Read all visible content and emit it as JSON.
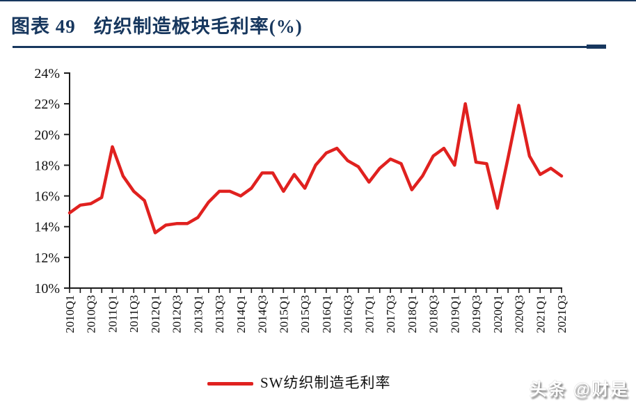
{
  "page": {
    "title_prefix": "图表 49",
    "title_text": "纺织制造板块毛利率(%)",
    "watermark": "头条 @财是"
  },
  "colors": {
    "navy": "#17375E",
    "line_red": "#E0211F",
    "axis": "#1a1a1a"
  },
  "legend": {
    "label": "SW纺织制造毛利率"
  },
  "chart_data": {
    "type": "line",
    "title": "纺织制造板块毛利率(%)",
    "x": [
      "2010Q1",
      "2010Q2",
      "2010Q3",
      "2010Q4",
      "2011Q1",
      "2011Q2",
      "2011Q3",
      "2011Q4",
      "2012Q1",
      "2012Q2",
      "2012Q3",
      "2012Q4",
      "2013Q1",
      "2013Q2",
      "2013Q3",
      "2013Q4",
      "2014Q1",
      "2014Q2",
      "2014Q3",
      "2014Q4",
      "2015Q1",
      "2015Q2",
      "2015Q3",
      "2015Q4",
      "2016Q1",
      "2016Q2",
      "2016Q3",
      "2016Q4",
      "2017Q1",
      "2017Q2",
      "2017Q3",
      "2017Q4",
      "2018Q1",
      "2018Q2",
      "2018Q3",
      "2018Q4",
      "2019Q1",
      "2019Q2",
      "2019Q3",
      "2019Q4",
      "2020Q1",
      "2020Q2",
      "2020Q3",
      "2020Q4",
      "2021Q1",
      "2021Q2",
      "2021Q3"
    ],
    "series": [
      {
        "name": "SW纺织制造毛利率",
        "values": [
          14.9,
          15.4,
          15.5,
          15.9,
          19.2,
          17.3,
          16.3,
          15.7,
          13.6,
          14.1,
          14.2,
          14.2,
          14.6,
          15.6,
          16.3,
          16.3,
          16.0,
          16.5,
          17.5,
          17.5,
          16.3,
          17.4,
          16.5,
          18.0,
          18.8,
          19.1,
          18.3,
          17.9,
          16.9,
          17.8,
          18.4,
          18.1,
          16.4,
          17.3,
          18.6,
          19.1,
          18.0,
          22.0,
          18.2,
          18.1,
          15.2,
          18.5,
          21.9,
          18.6,
          17.4,
          17.8,
          17.3
        ]
      }
    ],
    "ylim": [
      10,
      24
    ],
    "ytick_labels": [
      "10%",
      "12%",
      "14%",
      "16%",
      "18%",
      "20%",
      "22%",
      "24%"
    ],
    "xtick_labels_shown": [
      "2010Q1",
      "2010Q3",
      "2011Q1",
      "2011Q3",
      "2012Q1",
      "2012Q3",
      "2013Q1",
      "2013Q3",
      "2014Q1",
      "2014Q3",
      "2015Q1",
      "2015Q3",
      "2016Q1",
      "2016Q3",
      "2017Q1",
      "2017Q3",
      "2018Q1",
      "2018Q3",
      "2019Q1",
      "2019Q3",
      "2020Q1",
      "2020Q3",
      "2021Q1",
      "2021Q3"
    ],
    "grid": false,
    "legend_position": "bottom"
  }
}
